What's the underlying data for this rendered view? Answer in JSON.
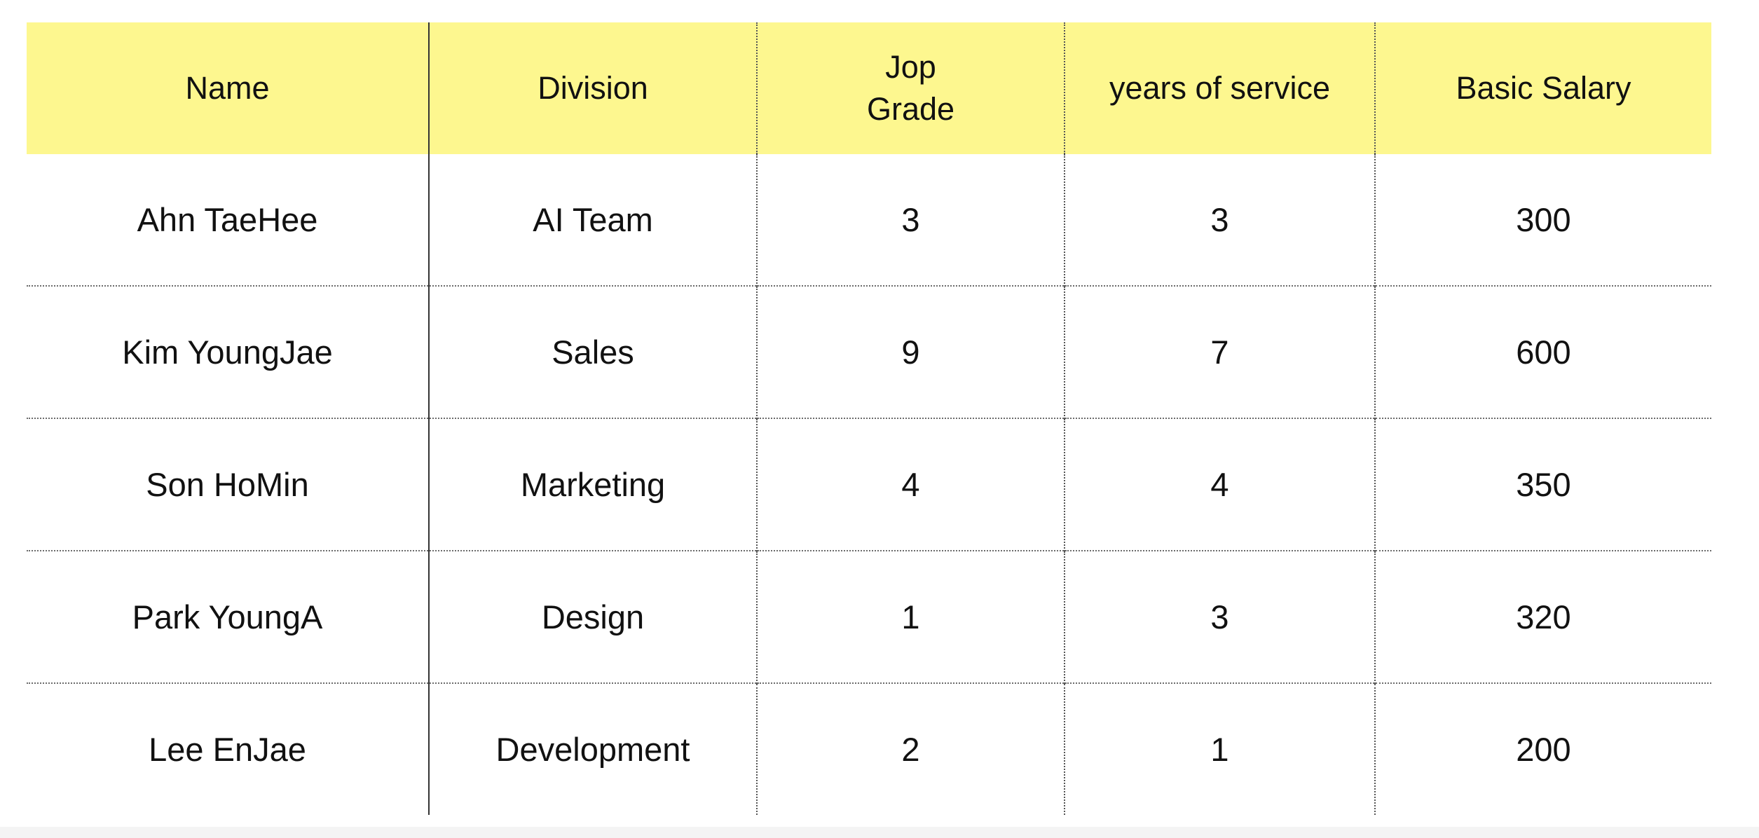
{
  "table": {
    "headers": [
      "Name",
      "Division",
      "Jop\nGrade",
      "years of service",
      "Basic Salary"
    ],
    "rows": [
      [
        "Ahn TaeHee",
        "AI Team",
        "3",
        "3",
        "300"
      ],
      [
        "Kim YoungJae",
        "Sales",
        "9",
        "7",
        "600"
      ],
      [
        "Son HoMin",
        "Marketing",
        "4",
        "4",
        "350"
      ],
      [
        "Park YoungA",
        "Design",
        "1",
        "3",
        "320"
      ],
      [
        "Lee EnJae",
        "Development",
        "2",
        "1",
        "200"
      ]
    ]
  },
  "colors": {
    "header_background": "#fdf78f",
    "text": "#111111",
    "grid_line": "#555555"
  }
}
